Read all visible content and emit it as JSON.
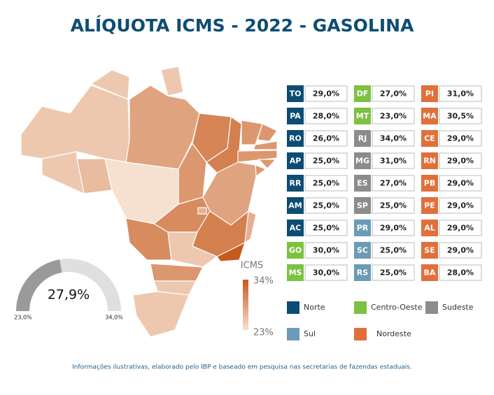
{
  "title": "ALÍQUOTA ICMS - 2022 - GASOLINA",
  "scale": {
    "title": "ICMS",
    "min": {
      "value": 23,
      "label": "23%"
    },
    "max": {
      "value": 34,
      "label": "34%"
    },
    "low_color": "#f6e0cf",
    "high_color": "#c65a1e"
  },
  "gauge": {
    "value": 27.9,
    "label": "27,9%",
    "min": {
      "value": 23.0,
      "label": "23,0%"
    },
    "max": {
      "value": 34.0,
      "label": "34,0%"
    }
  },
  "regions": [
    {
      "name": "Norte",
      "color": "#0d4d73"
    },
    {
      "name": "Centro-Oeste",
      "color": "#7cc142"
    },
    {
      "name": "Sudeste",
      "color": "#8c8c8c"
    },
    {
      "name": "Sul",
      "color": "#6b9bb6"
    },
    {
      "name": "Nordeste",
      "color": "#e0703b"
    }
  ],
  "states": [
    {
      "code": "TO",
      "value": 29.0,
      "label": "29,0%",
      "region": 0
    },
    {
      "code": "PA",
      "value": 28.0,
      "label": "28,0%",
      "region": 0
    },
    {
      "code": "RO",
      "value": 26.0,
      "label": "26,0%",
      "region": 0
    },
    {
      "code": "AP",
      "value": 25.0,
      "label": "25,0%",
      "region": 0
    },
    {
      "code": "RR",
      "value": 25.0,
      "label": "25,0%",
      "region": 0
    },
    {
      "code": "AM",
      "value": 25.0,
      "label": "25,0%",
      "region": 0
    },
    {
      "code": "AC",
      "value": 25.0,
      "label": "25,0%",
      "region": 0
    },
    {
      "code": "GO",
      "value": 30.0,
      "label": "30,0%",
      "region": 1
    },
    {
      "code": "MS",
      "value": 30.0,
      "label": "30,0%",
      "region": 1
    },
    {
      "code": "DF",
      "value": 27.0,
      "label": "27,0%",
      "region": 1
    },
    {
      "code": "MT",
      "value": 23.0,
      "label": "23,0%",
      "region": 1
    },
    {
      "code": "RJ",
      "value": 34.0,
      "label": "34,0%",
      "region": 2
    },
    {
      "code": "MG",
      "value": 31.0,
      "label": "31,0%",
      "region": 2
    },
    {
      "code": "ES",
      "value": 27.0,
      "label": "27,0%",
      "region": 2
    },
    {
      "code": "SP",
      "value": 25.0,
      "label": "25,0%",
      "region": 2
    },
    {
      "code": "PR",
      "value": 29.0,
      "label": "29,0%",
      "region": 3
    },
    {
      "code": "SC",
      "value": 25.0,
      "label": "25,0%",
      "region": 3
    },
    {
      "code": "RS",
      "value": 25.0,
      "label": "25,0%",
      "region": 3
    },
    {
      "code": "PI",
      "value": 31.0,
      "label": "31,0%",
      "region": 4
    },
    {
      "code": "MA",
      "value": 30.5,
      "label": "30,5%",
      "region": 4
    },
    {
      "code": "CE",
      "value": 29.0,
      "label": "29,0%",
      "region": 4
    },
    {
      "code": "RN",
      "value": 29.0,
      "label": "29,0%",
      "region": 4
    },
    {
      "code": "PB",
      "value": 29.0,
      "label": "29,0%",
      "region": 4
    },
    {
      "code": "PE",
      "value": 29.0,
      "label": "29,0%",
      "region": 4
    },
    {
      "code": "AL",
      "value": 29.0,
      "label": "29,0%",
      "region": 4
    },
    {
      "code": "SE",
      "value": 29.0,
      "label": "29,0%",
      "region": 4
    },
    {
      "code": "BA",
      "value": 28.0,
      "label": "28,0%",
      "region": 4
    }
  ],
  "footer": "Informações ilustrativas, elaborado pelo IBP e baseado em pesquisa nas secretarias de fazendas estaduais."
}
